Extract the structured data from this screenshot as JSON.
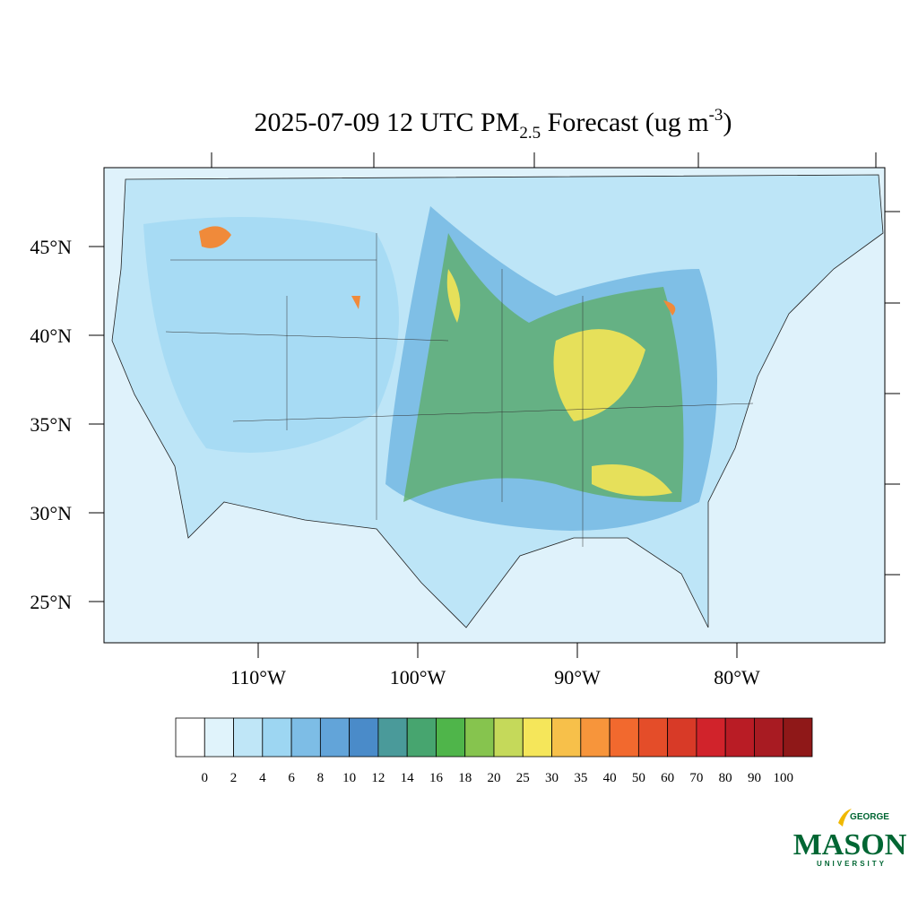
{
  "title": {
    "main": "2025-07-09 12 UTC PM",
    "subscript": "2.5",
    "rest": " Forecast (ug m",
    "superscript": "-3",
    "close": ")"
  },
  "lat_ticks": [
    {
      "value": 45,
      "label": "45°N"
    },
    {
      "value": 40,
      "label": "40°N"
    },
    {
      "value": 35,
      "label": "35°N"
    },
    {
      "value": 30,
      "label": "30°N"
    },
    {
      "value": 25,
      "label": "25°N"
    }
  ],
  "lon_ticks": [
    {
      "value": -110,
      "label": "110°W"
    },
    {
      "value": -100,
      "label": "100°W"
    },
    {
      "value": -90,
      "label": "90°W"
    },
    {
      "value": -80,
      "label": "80°W"
    }
  ],
  "colorbar": {
    "levels": [
      0,
      2,
      4,
      6,
      8,
      10,
      12,
      14,
      16,
      18,
      20,
      25,
      30,
      35,
      40,
      50,
      60,
      70,
      80,
      90,
      100
    ],
    "colors": [
      "#ffffff",
      "#e0f3fb",
      "#bfe6f7",
      "#9dd6f2",
      "#7dbde6",
      "#62a4d9",
      "#4a8bc9",
      "#4a9a9a",
      "#47a56f",
      "#4fb54a",
      "#86c44e",
      "#c5d95a",
      "#f5e65a",
      "#f7c04a",
      "#f7953b",
      "#f2692e",
      "#e44d29",
      "#d83a27",
      "#d1232b",
      "#b91c25",
      "#a81b22",
      "#8f1818"
    ]
  },
  "logo": {
    "top": "GEORGE",
    "main": "MASON",
    "bottom": "UNIVERSITY"
  }
}
